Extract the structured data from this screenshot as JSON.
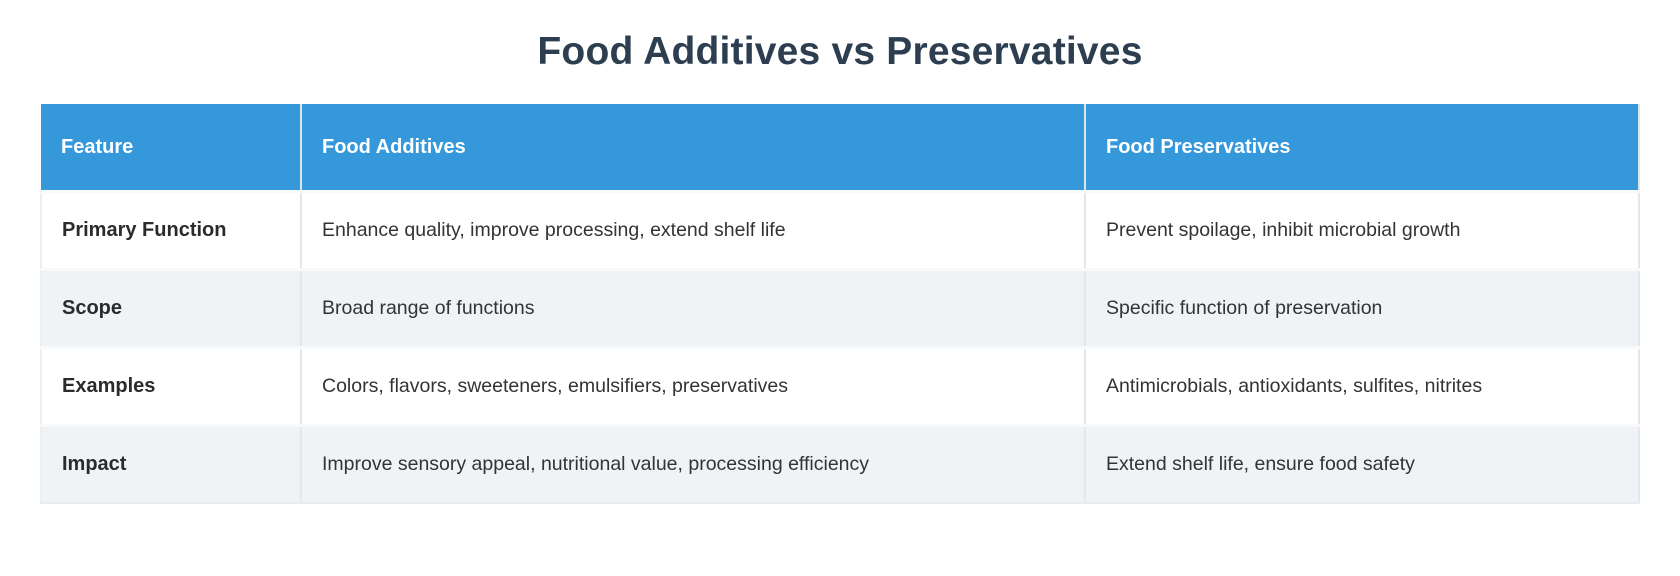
{
  "page": {
    "title": "Food Additives vs Preservatives"
  },
  "colors": {
    "header_background": "#3498db",
    "header_text": "#ffffff",
    "title_text": "#2c3e50",
    "row_background": "#ffffff",
    "row_alt_background": "#eff3f6",
    "cell_text": "#333333",
    "divider": "#e4e8ec"
  },
  "table": {
    "columns": [
      "Feature",
      "Food Additives",
      "Food Preservatives"
    ],
    "rows": [
      {
        "feature": "Primary Function",
        "additives": "Enhance quality, improve processing, extend shelf life",
        "preservatives": "Prevent spoilage, inhibit microbial growth"
      },
      {
        "feature": "Scope",
        "additives": "Broad range of functions",
        "preservatives": "Specific function of preservation"
      },
      {
        "feature": "Examples",
        "additives": "Colors, flavors, sweeteners, emulsifiers, preservatives",
        "preservatives": "Antimicrobials, antioxidants, sulfites, nitrites"
      },
      {
        "feature": "Impact",
        "additives": "Improve sensory appeal, nutritional value, processing efficiency",
        "preservatives": "Extend shelf life, ensure food safety"
      }
    ]
  }
}
